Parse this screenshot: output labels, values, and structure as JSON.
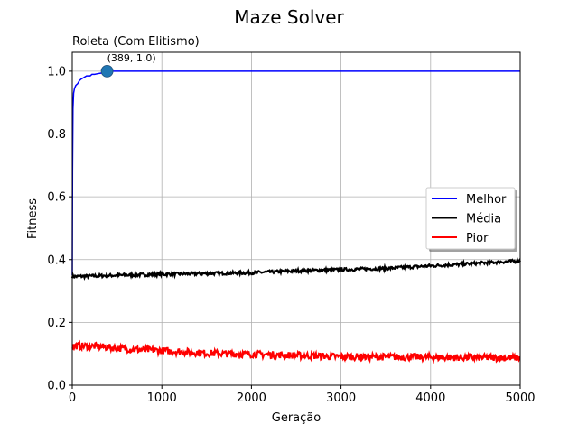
{
  "chart_data": {
    "type": "line",
    "title": "Maze Solver",
    "subtitle": "Roleta (Com Elitismo)",
    "xlabel": "Geração",
    "ylabel": "Fitness",
    "xlim": [
      0,
      5000
    ],
    "ylim": [
      0,
      1.06
    ],
    "xticks": [
      0,
      1000,
      2000,
      3000,
      4000,
      5000
    ],
    "yticks": [
      0.0,
      0.2,
      0.4,
      0.6,
      0.8,
      1.0
    ],
    "xtick_labels": [
      "0",
      "1000",
      "2000",
      "3000",
      "4000",
      "5000"
    ],
    "ytick_labels": [
      "0.0",
      "0.2",
      "0.4",
      "0.6",
      "0.8",
      "1.0"
    ],
    "grid": true,
    "legend_position": "center-right",
    "series": [
      {
        "name": "Melhor",
        "color": "#0000ff",
        "x": [
          0,
          3,
          8,
          15,
          25,
          40,
          60,
          80,
          100,
          130,
          160,
          200,
          220,
          250,
          300,
          350,
          389,
          5000
        ],
        "y": [
          0.35,
          0.68,
          0.88,
          0.93,
          0.945,
          0.955,
          0.96,
          0.97,
          0.975,
          0.98,
          0.985,
          0.985,
          0.99,
          0.99,
          0.993,
          0.995,
          1.0,
          1.0
        ]
      },
      {
        "name": "Média",
        "color": "#000000",
        "x": [
          0,
          500,
          1000,
          1500,
          2000,
          2500,
          3000,
          3500,
          4000,
          4500,
          5000
        ],
        "y": [
          0.346,
          0.35,
          0.353,
          0.356,
          0.358,
          0.364,
          0.368,
          0.372,
          0.38,
          0.388,
          0.396
        ],
        "noise": 0.005
      },
      {
        "name": "Pior",
        "color": "#ff0000",
        "x": [
          0,
          250,
          500,
          750,
          1000,
          1250,
          1500,
          1750,
          2000,
          2250,
          2500,
          2750,
          3000,
          3500,
          4000,
          4500,
          5000
        ],
        "y": [
          0.125,
          0.124,
          0.118,
          0.113,
          0.11,
          0.106,
          0.102,
          0.1,
          0.099,
          0.097,
          0.095,
          0.093,
          0.091,
          0.09,
          0.089,
          0.088,
          0.087
        ],
        "noise": 0.011
      }
    ],
    "annotations": [
      {
        "x": 389,
        "y": 1.0,
        "text": "(389, 1.0)",
        "marker_color": "#1f77b4"
      }
    ]
  }
}
